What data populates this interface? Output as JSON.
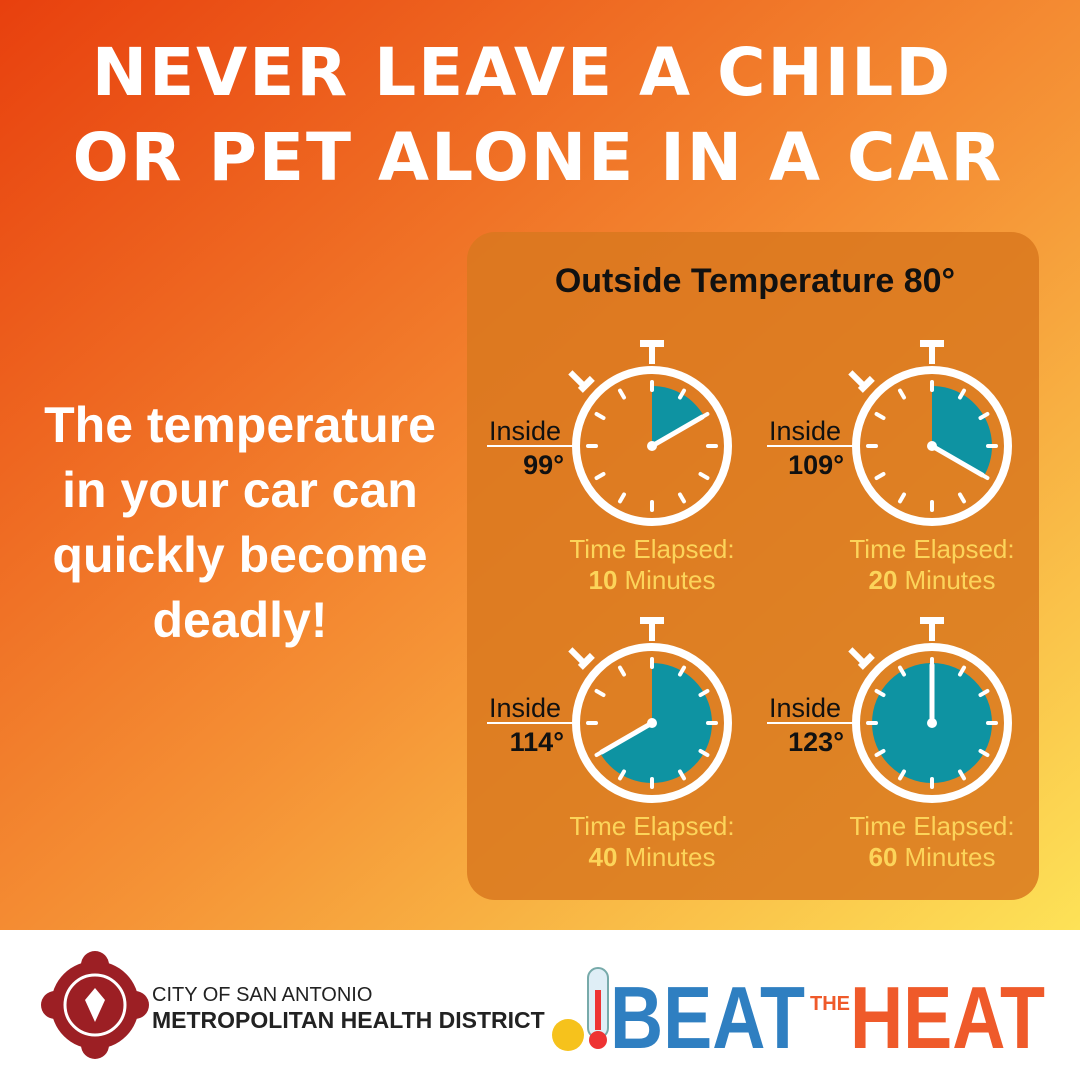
{
  "title": [
    "NEVER LEAVE A CHILD",
    "OR PET ALONE IN A CAR"
  ],
  "message": [
    "The temperature",
    "in your car can",
    "quickly become",
    "deadly!"
  ],
  "panel": {
    "heading": "Outside Temperature 80°",
    "timers": [
      {
        "inside_label": "Inside",
        "inside_temp": "99°",
        "elapsed_label": "Time Elapsed:",
        "minutes": 10,
        "minutes_unit": "Minutes"
      },
      {
        "inside_label": "Inside",
        "inside_temp": "109°",
        "elapsed_label": "Time Elapsed:",
        "minutes": 20,
        "minutes_unit": "Minutes"
      },
      {
        "inside_label": "Inside",
        "inside_temp": "114°",
        "elapsed_label": "Time Elapsed:",
        "minutes": 40,
        "minutes_unit": "Minutes"
      },
      {
        "inside_label": "Inside",
        "inside_temp": "123°",
        "elapsed_label": "Time Elapsed:",
        "minutes": 60,
        "minutes_unit": "Minutes"
      }
    ]
  },
  "footer": {
    "org_line1": "CITY OF SAN ANTONIO",
    "org_line2": "METROPOLITAN HEALTH DISTRICT",
    "campaign": {
      "word1": "BEAT",
      "word2": "THE",
      "word3": "HEAT"
    }
  }
}
